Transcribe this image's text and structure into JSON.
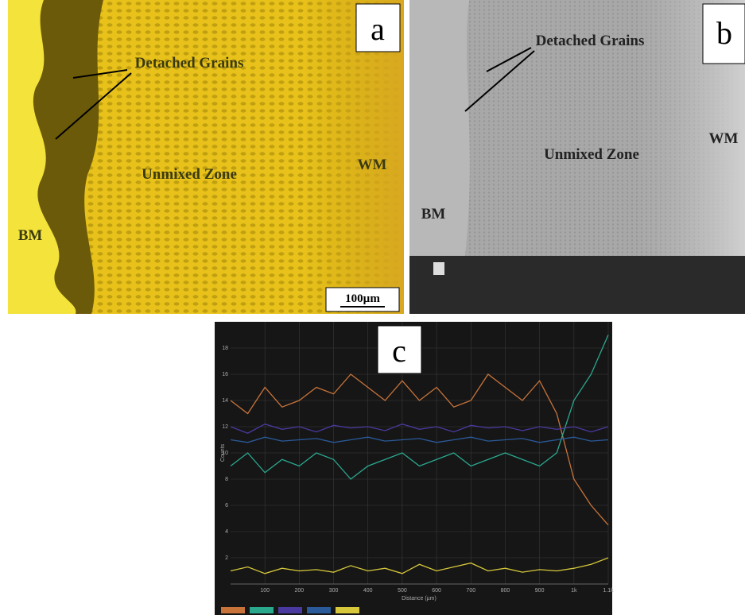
{
  "panel_a": {
    "label": "a",
    "annotations": [
      "Detached Grains",
      "Unmixed Zone",
      "BM",
      "WM"
    ],
    "scale_bar": "100µm"
  },
  "panel_b": {
    "label": "b",
    "annotations": [
      "Detached Grains",
      "Unmixed Zone",
      "BM",
      "WM"
    ]
  },
  "chart_data": {
    "type": "line",
    "panel_label": "c",
    "xlabel": "Distance (µm)",
    "ylabel": "Counts",
    "x": [
      0,
      50,
      100,
      150,
      200,
      250,
      300,
      350,
      400,
      450,
      500,
      550,
      600,
      650,
      700,
      750,
      800,
      850,
      900,
      950,
      1000,
      1050,
      1100
    ],
    "series": [
      {
        "color": "#c8733a",
        "values": [
          14,
          13,
          15,
          13.5,
          14,
          15,
          14.5,
          16,
          15,
          14,
          15.5,
          14,
          15,
          13.5,
          14,
          16,
          15,
          14,
          15.5,
          13,
          8,
          6,
          4.5
        ]
      },
      {
        "color": "#2aa88e",
        "values": [
          9,
          10,
          8.5,
          9.5,
          9,
          10,
          9.5,
          8,
          9,
          9.5,
          10,
          9,
          9.5,
          10,
          9,
          9.5,
          10,
          9.5,
          9,
          10,
          14,
          16,
          19
        ]
      },
      {
        "color": "#4a3aa0",
        "values": [
          12,
          11.5,
          12.2,
          11.8,
          12,
          11.6,
          12.1,
          11.9,
          12,
          11.7,
          12.2,
          11.8,
          12,
          11.6,
          12.1,
          11.9,
          12,
          11.7,
          12,
          11.8,
          12,
          11.6,
          12
        ]
      },
      {
        "color": "#2a5a9a",
        "values": [
          11,
          10.8,
          11.2,
          10.9,
          11,
          11.1,
          10.8,
          11,
          11.2,
          10.9,
          11,
          11.1,
          10.8,
          11,
          11.2,
          10.9,
          11,
          11.1,
          10.8,
          11,
          11.2,
          10.9,
          11
        ]
      },
      {
        "color": "#d6c83a",
        "values": [
          1,
          1.3,
          0.8,
          1.2,
          1,
          1.1,
          0.9,
          1.4,
          1,
          1.2,
          0.8,
          1.5,
          1,
          1.3,
          1.6,
          1,
          1.2,
          0.9,
          1.1,
          1,
          1.2,
          1.5,
          2
        ]
      }
    ],
    "xlim": [
      0,
      1100
    ],
    "ylim": [
      0,
      20
    ],
    "xticks": [
      100,
      200,
      300,
      400,
      500,
      600,
      700,
      800,
      900,
      {
        "value": 1000,
        "label": "1k"
      },
      {
        "value": 1100,
        "label": "1.1k"
      }
    ],
    "yticks": [
      2,
      4,
      6,
      8,
      10,
      12,
      14,
      16,
      18
    ],
    "grid": true
  }
}
